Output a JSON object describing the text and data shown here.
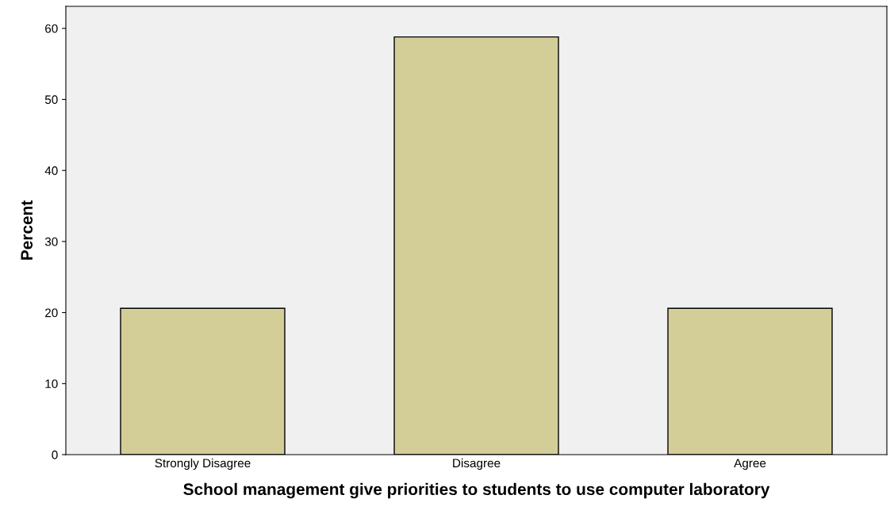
{
  "chart_data": {
    "type": "bar",
    "xlabel": "School management give priorities to students to use computer laboratory",
    "ylabel": "Percent",
    "categories": [
      "Strongly Disagree",
      "Disagree",
      "Agree"
    ],
    "values": [
      20.6,
      58.8,
      20.6
    ],
    "color": "#d3ce98",
    "ylim": [
      0,
      63.1
    ],
    "yticks": [
      0,
      10,
      20,
      30,
      40,
      50,
      60
    ],
    "grid": false,
    "legend": false
  }
}
